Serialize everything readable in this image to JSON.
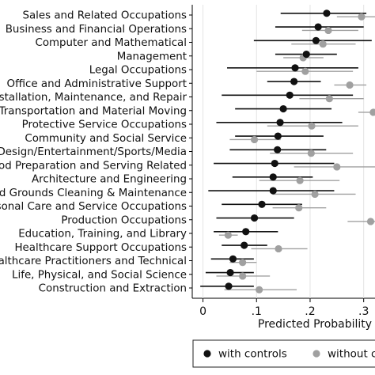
{
  "chart_data": {
    "type": "scatter",
    "xlabel": "Predicted Probability",
    "xlim": [
      -0.02,
      0.33
    ],
    "xticks": [
      0,
      0.1,
      0.2,
      0.3
    ],
    "xtick_labels": [
      "0",
      ".1",
      ".2",
      ".3"
    ],
    "grid": true,
    "legend_position": "bottom",
    "categories": [
      "Sales and Related Occupations",
      "Business and Financial Operations",
      "Computer and Mathematical",
      "Management",
      "Legal Occupations",
      "Office and Administrative Support",
      "Installation, Maintenance, and Repair",
      "Transportation and Material Moving",
      "Protective Service Occupations",
      "Community and Social Service",
      "Arts/Design/Entertainment/Sports/Media",
      "Food Preparation and Serving Related",
      "Architecture and Engineering",
      "Building and Grounds Cleaning & Maintenance",
      "Personal Care and Service Occupations",
      "Production Occupations",
      "Education, Training, and Library",
      "Healthcare Support Occupations",
      "Healthcare Practitioners and Technical",
      "Life, Physical, and Social Science",
      "Construction and Extraction"
    ],
    "series": [
      {
        "name": "with controls",
        "color": "#111111",
        "values": [
          0.231,
          0.215,
          0.211,
          0.193,
          0.172,
          0.17,
          0.162,
          0.15,
          0.144,
          0.14,
          0.139,
          0.134,
          0.131,
          0.131,
          0.11,
          0.096,
          0.08,
          0.077,
          0.056,
          0.051,
          0.048
        ],
        "ci_low": [
          0.145,
          0.135,
          0.095,
          0.135,
          0.045,
          0.12,
          0.035,
          0.06,
          0.025,
          0.06,
          0.05,
          0.02,
          0.055,
          0.01,
          0.035,
          0.025,
          0.02,
          0.035,
          0.015,
          0.005,
          -0.005
        ],
        "ci_high": [
          0.305,
          0.3,
          0.315,
          0.25,
          0.29,
          0.22,
          0.28,
          0.24,
          0.26,
          0.225,
          0.23,
          0.245,
          0.205,
          0.245,
          0.185,
          0.17,
          0.14,
          0.12,
          0.095,
          0.095,
          0.095
        ]
      },
      {
        "name": "without controls",
        "color": "#a0a0a0",
        "values": [
          0.296,
          0.234,
          0.224,
          0.187,
          0.191,
          0.274,
          0.236,
          0.318,
          0.203,
          0.096,
          0.202,
          0.25,
          0.181,
          0.209,
          0.179,
          0.313,
          0.047,
          0.141,
          0.074,
          0.074,
          0.105
        ],
        "ci_low": [
          0.25,
          0.185,
          0.165,
          0.15,
          0.1,
          0.245,
          0.18,
          0.29,
          0.12,
          0.05,
          0.125,
          0.17,
          0.105,
          0.13,
          0.13,
          0.27,
          0.03,
          0.09,
          0.05,
          0.025,
          0.04
        ],
        "ci_high": [
          0.34,
          0.29,
          0.285,
          0.225,
          0.28,
          0.305,
          0.3,
          0.35,
          0.29,
          0.145,
          0.28,
          0.33,
          0.255,
          0.285,
          0.23,
          0.35,
          0.065,
          0.195,
          0.1,
          0.125,
          0.175
        ]
      }
    ]
  }
}
